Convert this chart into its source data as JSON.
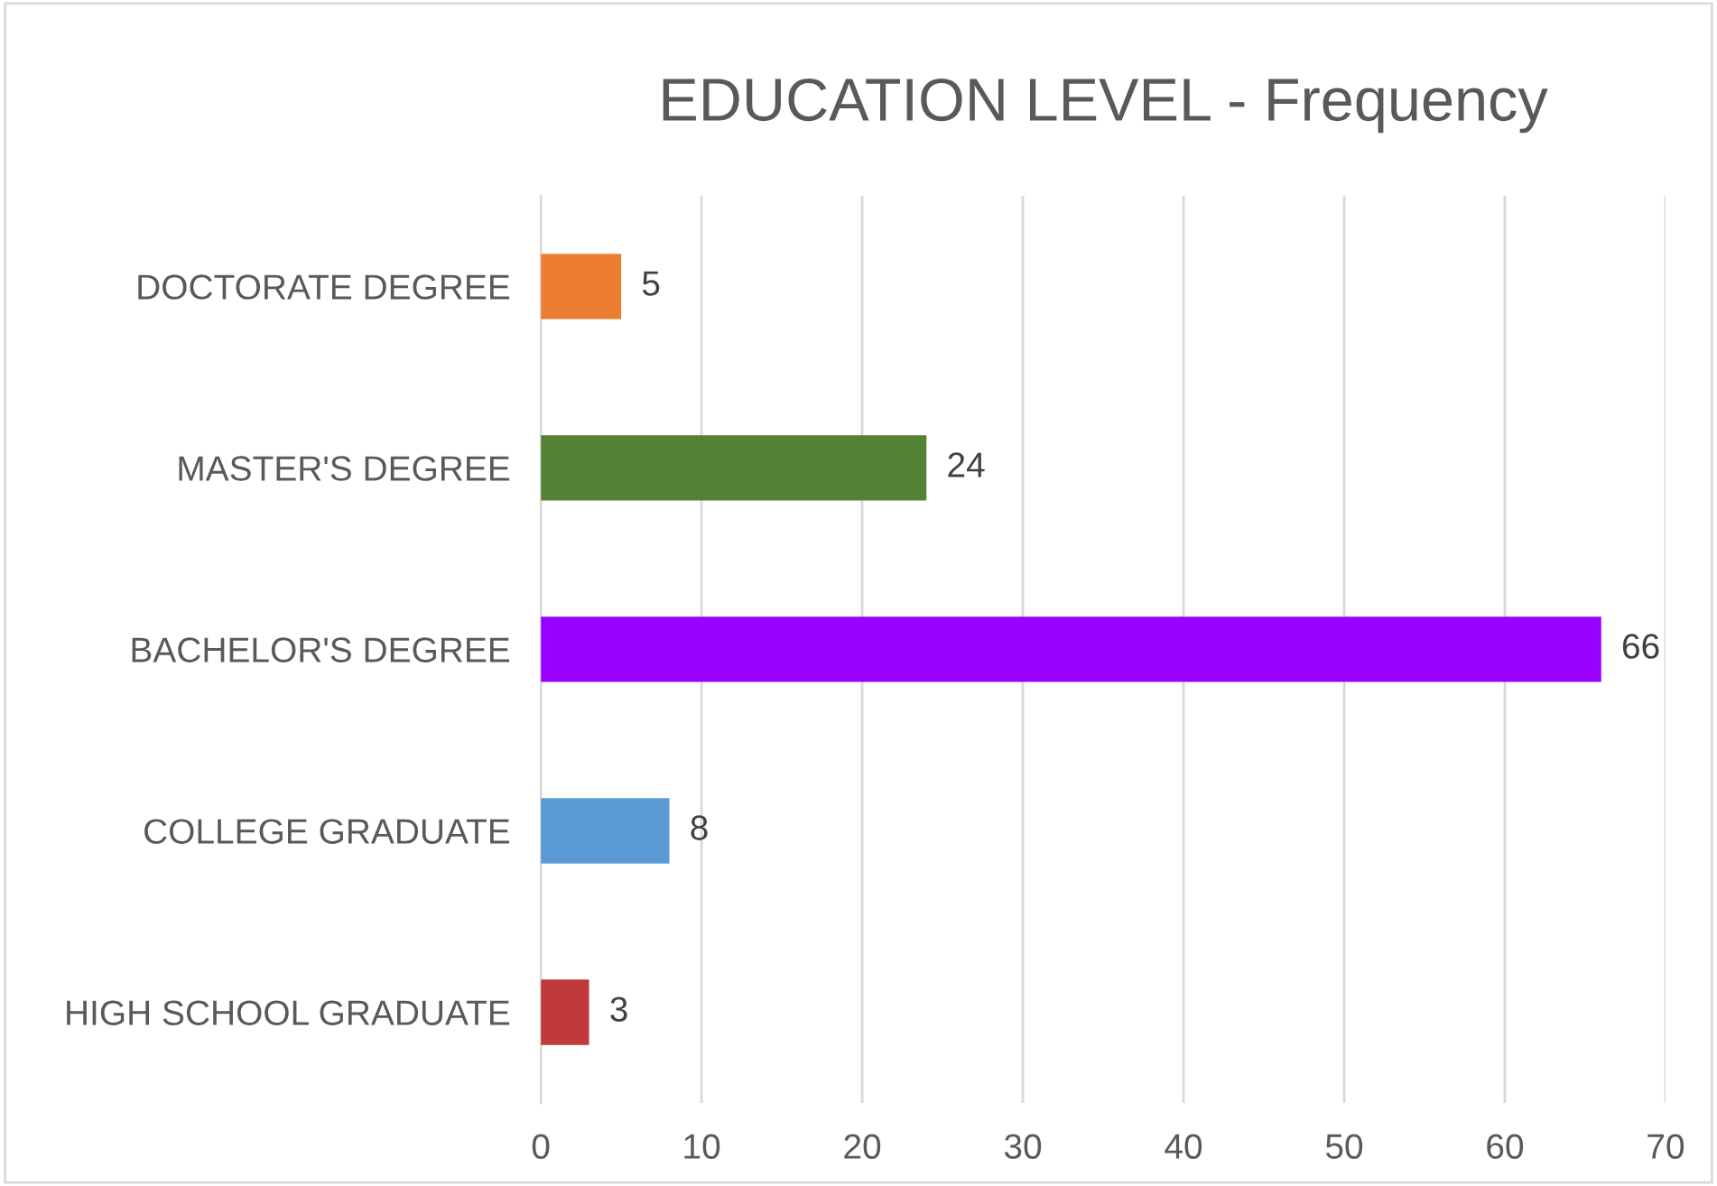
{
  "chart_data": {
    "type": "bar",
    "orientation": "horizontal",
    "title": "EDUCATION LEVEL - Frequency",
    "categories": [
      "DOCTORATE DEGREE",
      "MASTER'S DEGREE",
      "BACHELOR'S DEGREE",
      "COLLEGE GRADUATE",
      "HIGH SCHOOL GRADUATE"
    ],
    "values": [
      5,
      24,
      66,
      8,
      3
    ],
    "colors": [
      "#ed7d31",
      "#548235",
      "#9900ff",
      "#5b9bd5",
      "#c0393b"
    ],
    "xlim": [
      0,
      70
    ],
    "xticks": [
      0,
      10,
      20,
      30,
      40,
      50,
      60,
      70
    ],
    "grid": "x",
    "data_labels": true
  }
}
